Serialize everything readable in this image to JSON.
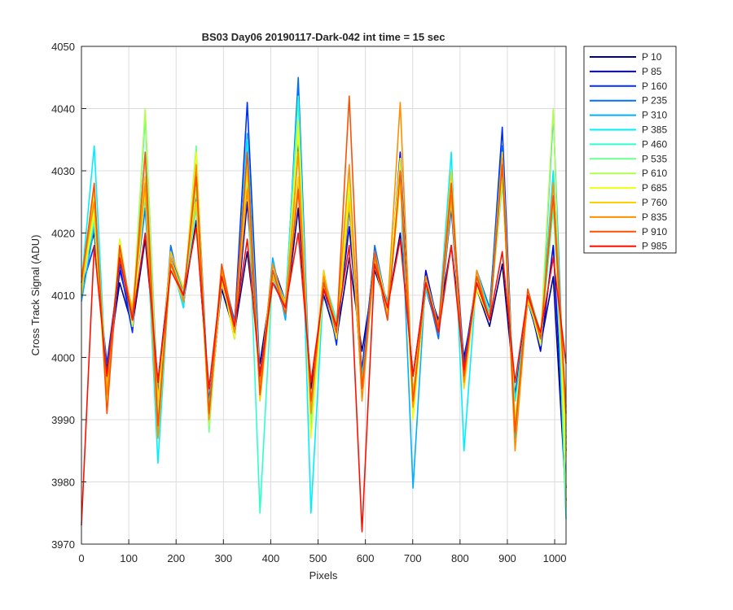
{
  "chart_data": {
    "type": "line",
    "title": "BS03 Day06 20190117-Dark-042 int time = 15 sec",
    "xlabel": "Pixels",
    "ylabel": "Cross Track Signal (ADU)",
    "xlim": [
      0,
      1024
    ],
    "ylim": [
      3970,
      4050
    ],
    "xticks": [
      0,
      100,
      200,
      300,
      400,
      500,
      600,
      700,
      800,
      900,
      1000
    ],
    "yticks": [
      3970,
      3980,
      3990,
      4000,
      4010,
      4020,
      4030,
      4040,
      4050
    ],
    "grid": true,
    "legend_position": "outside-top-right",
    "series": [
      {
        "name": "P 10",
        "color": "#00008f",
        "values": [
          4013,
          4020,
          3998,
          4012,
          4005,
          4019,
          3996,
          4015,
          4009,
          4022,
          3993,
          4011,
          4004,
          4017,
          3999,
          4013,
          4007,
          4024,
          3995,
          4010,
          4003,
          4016,
          4001,
          4014,
          4008,
          4020,
          3997,
          4012,
          4006,
          4018,
          4000,
          4011,
          4005,
          4015,
          3994,
          4009,
          4002,
          4013,
          3977
        ]
      },
      {
        "name": "P 85",
        "color": "#0000df",
        "values": [
          4012,
          4023,
          3995,
          4014,
          4006,
          4027,
          3992,
          4016,
          4008,
          4030,
          3989,
          4013,
          4003,
          4025,
          3996,
          4015,
          4009,
          4035,
          3991,
          4011,
          4004,
          4021,
          3998,
          4017,
          4007,
          4033,
          3993,
          4014,
          4005,
          4024,
          3997,
          4012,
          4006,
          4031,
          3987,
          4010,
          4001,
          4018,
          3979
        ]
      },
      {
        "name": "P 160",
        "color": "#002fff",
        "values": [
          4011,
          4018,
          3999,
          4015,
          4004,
          4029,
          3994,
          4017,
          4010,
          4026,
          3990,
          4012,
          4005,
          4041,
          3997,
          4014,
          4008,
          4043,
          3988,
          4013,
          4002,
          4024,
          3995,
          4016,
          4006,
          4031,
          3992,
          4011,
          4004,
          4027,
          3999,
          4013,
          4007,
          4037,
          3989,
          4009,
          4003,
          4026,
          3985
        ]
      },
      {
        "name": "P 235",
        "color": "#006fff",
        "values": [
          4010,
          4025,
          3997,
          4016,
          4007,
          4024,
          3991,
          4018,
          4009,
          4033,
          3992,
          4014,
          4006,
          4028,
          3994,
          4013,
          4007,
          4045,
          3990,
          4012,
          4005,
          4029,
          3996,
          4018,
          4008,
          4030,
          3994,
          4012,
          4003,
          4025,
          3996,
          4014,
          4008,
          4034,
          3988,
          4011,
          4004,
          4029,
          3987
        ]
      },
      {
        "name": "P 310",
        "color": "#00afff",
        "values": [
          4009,
          4021,
          3996,
          4017,
          4005,
          4039,
          3993,
          4015,
          4011,
          4025,
          3991,
          4013,
          4004,
          4036,
          3995,
          4016,
          4006,
          4028,
          3992,
          4014,
          4003,
          4027,
          3997,
          4015,
          4009,
          4029,
          3979,
          4013,
          4005,
          4026,
          3998,
          4012,
          4006,
          4030,
          3987,
          4010,
          4002,
          4039,
          3986
        ]
      },
      {
        "name": "P 385",
        "color": "#00efff",
        "values": [
          4012,
          4034,
          3994,
          4019,
          4006,
          4026,
          3983,
          4016,
          4008,
          4031,
          3990,
          4015,
          4003,
          4035,
          3996,
          4014,
          4009,
          4042,
          3975,
          4012,
          4004,
          4027,
          3994,
          4017,
          4007,
          4031,
          3992,
          4011,
          4005,
          4033,
          3985,
          4013,
          4006,
          4028,
          3993,
          4009,
          4003,
          4030,
          3974
        ]
      },
      {
        "name": "P 460",
        "color": "#2fffcf",
        "values": [
          4011,
          4022,
          3995,
          4018,
          4005,
          4039,
          3987,
          4015,
          4010,
          4024,
          3992,
          4013,
          4004,
          4030,
          3975,
          4014,
          4007,
          4042,
          3989,
          4013,
          4006,
          4025,
          3995,
          4016,
          4008,
          4030,
          3991,
          4012,
          4004,
          4027,
          3996,
          4014,
          4007,
          4029,
          3988,
          4010,
          4002,
          4024,
          3988
        ]
      },
      {
        "name": "P 535",
        "color": "#6fff8f",
        "values": [
          4010,
          4026,
          3993,
          4017,
          4007,
          4028,
          3990,
          4016,
          4009,
          4034,
          3988,
          4014,
          4005,
          4029,
          3995,
          4013,
          4008,
          4033,
          3990,
          4012,
          4003,
          4026,
          3996,
          4015,
          4007,
          4031,
          3992,
          4013,
          4005,
          4025,
          3997,
          4012,
          4006,
          4030,
          3988,
          4011,
          4004,
          4025,
          3987
        ]
      },
      {
        "name": "P 610",
        "color": "#afff4f",
        "values": [
          4012,
          4024,
          3994,
          4018,
          4006,
          4040,
          3991,
          4016,
          4010,
          4027,
          3989,
          4014,
          4004,
          4032,
          3996,
          4015,
          4008,
          4036,
          3991,
          4013,
          4005,
          4029,
          3995,
          4016,
          4007,
          4029,
          3993,
          4012,
          4004,
          4026,
          3996,
          4013,
          4006,
          4031,
          3990,
          4010,
          4003,
          4040,
          3976
        ]
      },
      {
        "name": "P 685",
        "color": "#efff0f",
        "values": [
          4011,
          4023,
          3992,
          4019,
          4005,
          4027,
          3987,
          4015,
          4009,
          4033,
          3990,
          4013,
          4003,
          4030,
          3994,
          4014,
          4007,
          4038,
          3987,
          4012,
          4004,
          4028,
          3994,
          4017,
          4008,
          4032,
          3990,
          4012,
          4005,
          4027,
          3997,
          4011,
          4006,
          4029,
          3989,
          4010,
          4002,
          4027,
          3984
        ]
      },
      {
        "name": "P 760",
        "color": "#ffcf00",
        "values": [
          4010,
          4027,
          3995,
          4016,
          4008,
          4029,
          3993,
          4017,
          4011,
          4025,
          3991,
          4012,
          4005,
          4031,
          3993,
          4013,
          4009,
          4029,
          3992,
          4014,
          4003,
          4025,
          3995,
          4015,
          4007,
          4028,
          3994,
          4013,
          4004,
          4030,
          3995,
          4012,
          4006,
          4033,
          3989,
          4009,
          4004,
          4026,
          3989
        ]
      },
      {
        "name": "P 835",
        "color": "#ff8f00",
        "values": [
          4013,
          4025,
          3994,
          4017,
          4007,
          4028,
          3987,
          4016,
          4009,
          4031,
          3990,
          4014,
          4004,
          4027,
          3996,
          4015,
          4008,
          4033,
          3991,
          4013,
          4005,
          4031,
          3993,
          4016,
          4008,
          4041,
          3992,
          4013,
          4004,
          4026,
          3996,
          4014,
          4006,
          4032,
          3985,
          4010,
          4003,
          4028,
          3992
        ]
      },
      {
        "name": "P 910",
        "color": "#ff4f00",
        "values": [
          4012,
          4028,
          3991,
          4018,
          4006,
          4033,
          3989,
          4015,
          4010,
          4029,
          3991,
          4015,
          4005,
          4033,
          3994,
          4014,
          4007,
          4027,
          3993,
          4012,
          4004,
          4042,
          3995,
          4017,
          4006,
          4030,
          3993,
          4012,
          4005,
          4028,
          3997,
          4013,
          4006,
          4031,
          3988,
          4011,
          4003,
          4026,
          3991
        ]
      },
      {
        "name": "P 985",
        "color": "#ff0f00",
        "values": [
          3973,
          4018,
          3997,
          4016,
          4006,
          4020,
          3996,
          4014,
          4010,
          4021,
          3995,
          4013,
          4005,
          4019,
          3997,
          4012,
          4008,
          4020,
          3996,
          4011,
          4005,
          4018,
          3972,
          4015,
          4008,
          4019,
          3997,
          4012,
          4004,
          4018,
          3998,
          4012,
          4006,
          4017,
          3996,
          4010,
          4004,
          4016,
          3999
        ]
      }
    ]
  }
}
